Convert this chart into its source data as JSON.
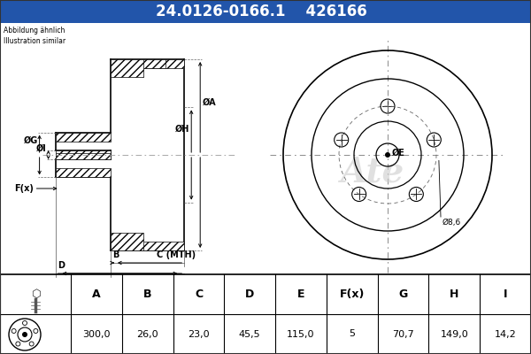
{
  "title_part": "24.0126-0166.1",
  "title_ref": "426166",
  "header_bg": "#2255aa",
  "header_text_color": "#ffffff",
  "body_bg": "#ddeeff",
  "table_bg": "#ffffff",
  "note_text": "Abbildung ähnlich\nIllustration similar",
  "dim_label_8_6": "Ø8,6",
  "table_headers": [
    "A",
    "B",
    "C",
    "D",
    "E",
    "F(x)",
    "G",
    "H",
    "I"
  ],
  "table_values": [
    "300,0",
    "26,0",
    "23,0",
    "45,5",
    "115,0",
    "5",
    "70,7",
    "149,0",
    "14,2"
  ],
  "label_A": "ØA",
  "label_H": "ØH",
  "label_G": "ØG",
  "label_I": "ØI",
  "label_B": "B",
  "label_C": "C (MTH)",
  "label_D": "D",
  "label_Fx": "F(x)",
  "label_E": "ØE",
  "bg_color": "#ddeeff",
  "drawing_bg": "#ffffff",
  "hatch_color": "#000000",
  "centerline_color": "#888888"
}
